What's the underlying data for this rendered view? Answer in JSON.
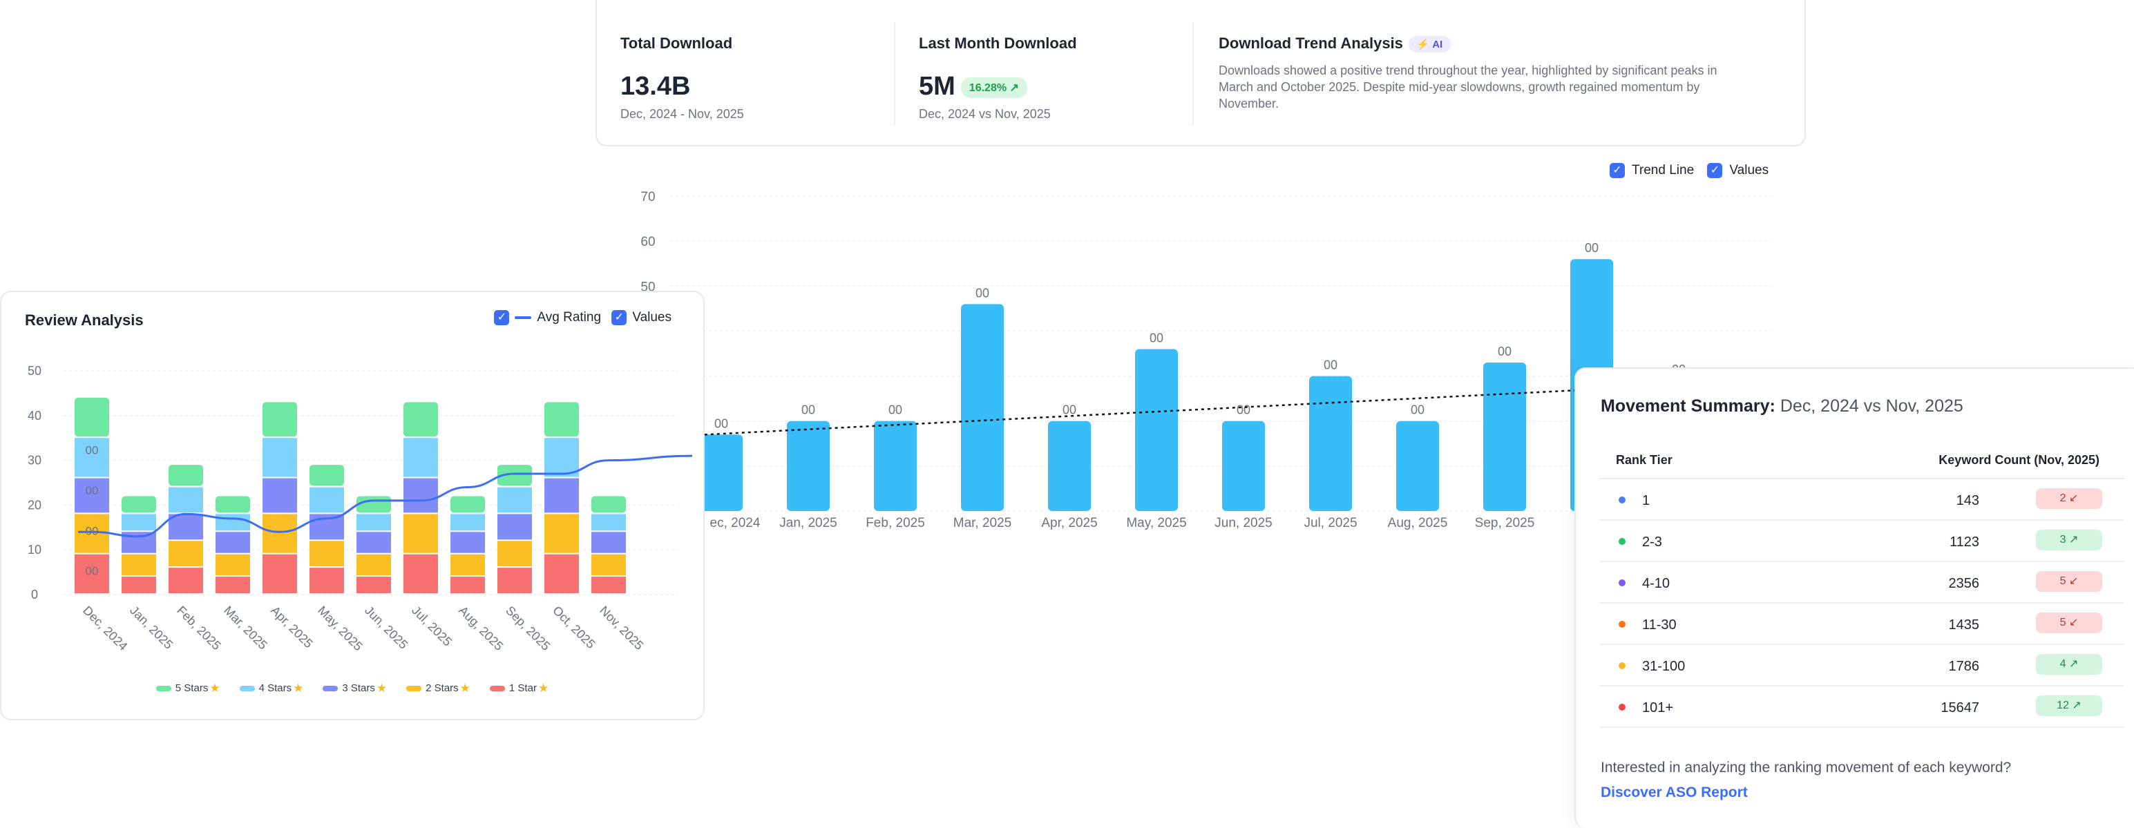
{
  "stats": {
    "total": {
      "title": "Total Download",
      "value": "13.4B",
      "period": "Dec, 2024 - Nov, 2025"
    },
    "last_month": {
      "title": "Last Month Download",
      "value": "5M",
      "change": "16.28% ↗",
      "period": "Dec, 2024 vs Nov, 2025"
    },
    "trend": {
      "title": "Download Trend Analysis",
      "badge": "⚡ AI",
      "text": "Downloads showed a positive trend throughout the year, highlighted by significant peaks in March and October 2025. Despite mid-year slowdowns, growth regained momentum by November."
    }
  },
  "main_legend": {
    "trend_line": "Trend Line",
    "values": "Values",
    "check": "✓"
  },
  "review": {
    "title": "Review Analysis",
    "legend_avg": "Avg Rating",
    "legend_values": "Values",
    "star_glyph": "★",
    "stars_legend": [
      {
        "label": "5 Stars",
        "color": "#6ee7a0"
      },
      {
        "label": "4 Stars",
        "color": "#7dd3fc"
      },
      {
        "label": "3 Stars",
        "color": "#818cf8"
      },
      {
        "label": "2 Stars",
        "color": "#fbbf24"
      },
      {
        "label": "1 Star",
        "color": "#f87171"
      }
    ]
  },
  "movement": {
    "title_bold": "Movement Summary:",
    "title_period": "Dec, 2024 vs Nov, 2025",
    "col_tier": "Rank Tier",
    "col_count": "Keyword Count (Nov, 2025)",
    "rows": [
      {
        "tier": "1",
        "count": "143",
        "change": "2 ↙",
        "dir": "down",
        "color": "#4f7df5"
      },
      {
        "tier": "2-3",
        "count": "1123",
        "change": "3 ↗",
        "dir": "up",
        "color": "#22c55e"
      },
      {
        "tier": "4-10",
        "count": "2356",
        "change": "5 ↙",
        "dir": "down",
        "color": "#7c5cf5"
      },
      {
        "tier": "11-30",
        "count": "1435",
        "change": "5 ↙",
        "dir": "down",
        "color": "#f97316"
      },
      {
        "tier": "31-100",
        "count": "1786",
        "change": "4 ↗",
        "dir": "up",
        "color": "#f5b820"
      },
      {
        "tier": "101+",
        "count": "15647",
        "change": "12 ↗",
        "dir": "up",
        "color": "#ef4444"
      }
    ],
    "question": "Interested in analyzing the ranking movement of each keyword?",
    "link": "Discover ASO Report"
  },
  "chart_data": [
    {
      "type": "bar",
      "title": "Downloads",
      "categories": [
        "Dec, 2024",
        "Jan, 2025",
        "Feb, 2025",
        "Mar, 2025",
        "Apr, 2025",
        "May, 2025",
        "Jun, 2025",
        "Jul, 2025",
        "Aug, 2025",
        "Sep, 2025",
        "Oct, 2025",
        "Nov, 2025"
      ],
      "visible_x_labels": [
        "ec, 2024",
        "Jan, 2025",
        "Feb, 2025",
        "Mar, 2025",
        "Apr, 2025",
        "May, 2025",
        "Jun, 2025",
        "Jul, 2025",
        "Aug, 2025",
        "Sep, 2025",
        "O"
      ],
      "values": [
        17,
        20,
        20,
        46,
        20,
        36,
        20,
        30,
        20,
        33,
        56,
        29
      ],
      "data_labels": [
        "00",
        "00",
        "00",
        "00",
        "00",
        "00",
        "00",
        "00",
        "00",
        "00",
        "00",
        "00"
      ],
      "trend_line": {
        "start": 16,
        "end": 28
      },
      "y_ticks": [
        "0",
        "10",
        "20",
        "30",
        "40",
        "50",
        "60",
        "70"
      ],
      "ylim": [
        0,
        70
      ],
      "grid": true
    },
    {
      "type": "bar",
      "stacked": true,
      "title": "Review Analysis",
      "categories": [
        "Dec, 2024",
        "Jan, 2025",
        "Feb, 2025",
        "Mar, 2025",
        "Apr, 2025",
        "May, 2025",
        "Jun, 2025",
        "Jul, 2025",
        "Aug, 2025",
        "Sep, 2025",
        "Oct, 2025",
        "Nov, 2025"
      ],
      "series": [
        {
          "name": "1 Star",
          "color": "#f87171",
          "values": [
            9,
            4,
            6,
            4,
            9,
            6,
            4,
            9,
            4,
            6,
            9,
            4
          ]
        },
        {
          "name": "2 Stars",
          "color": "#fbbf24",
          "values": [
            9,
            5,
            6,
            5,
            9,
            6,
            5,
            9,
            5,
            6,
            9,
            5
          ]
        },
        {
          "name": "3 Stars",
          "color": "#818cf8",
          "values": [
            8,
            5,
            6,
            5,
            8,
            6,
            5,
            8,
            5,
            6,
            8,
            5
          ]
        },
        {
          "name": "4 Stars",
          "color": "#7dd3fc",
          "values": [
            9,
            4,
            6,
            4,
            9,
            6,
            4,
            9,
            4,
            6,
            9,
            4
          ]
        },
        {
          "name": "5 Stars",
          "color": "#6ee7a0",
          "values": [
            9,
            4,
            5,
            4,
            8,
            5,
            4,
            8,
            4,
            5,
            8,
            4
          ]
        }
      ],
      "segment_labels": [
        "00",
        "00",
        "00",
        "00"
      ],
      "avg_rating": [
        14,
        13,
        18,
        17,
        14,
        17,
        21,
        21,
        24,
        27,
        27,
        30
      ],
      "avg_rating_end": 30,
      "y_ticks": [
        "0",
        "10",
        "20",
        "30",
        "40",
        "50"
      ],
      "ylim": [
        0,
        50
      ]
    }
  ]
}
